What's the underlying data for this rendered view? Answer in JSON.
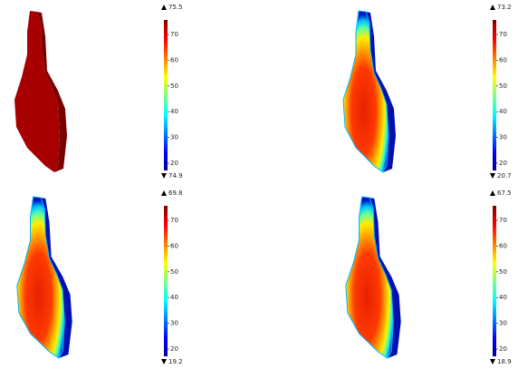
{
  "panels": [
    {
      "max_label": "75.5",
      "min_label": "74.9",
      "colorbar_ticks": [
        20,
        30,
        40,
        50,
        60,
        70
      ]
    },
    {
      "max_label": "73.2",
      "min_label": "20.7",
      "colorbar_ticks": [
        20,
        30,
        40,
        50,
        60,
        70
      ]
    },
    {
      "max_label": "69.8",
      "min_label": "19.2",
      "colorbar_ticks": [
        20,
        30,
        40,
        50,
        60,
        70
      ]
    },
    {
      "max_label": "67.5",
      "min_label": "18.9",
      "colorbar_ticks": [
        20,
        30,
        40,
        50,
        60,
        70
      ]
    }
  ]
}
